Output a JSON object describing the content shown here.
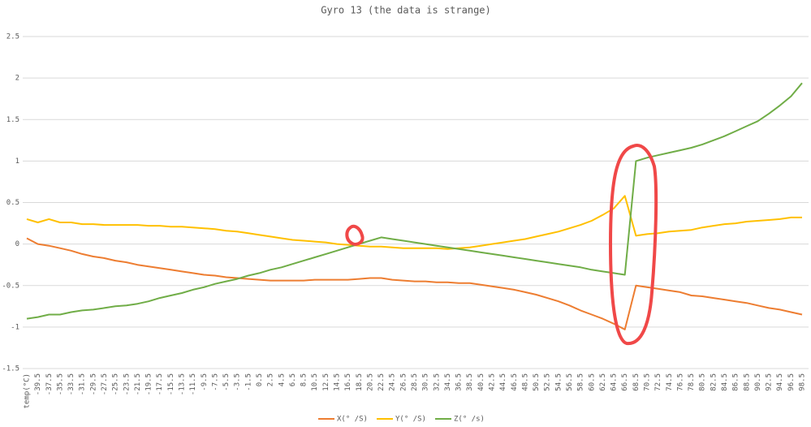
{
  "chart_data": {
    "type": "line",
    "title": "Gyro 13 (the data is strange)",
    "categories": [
      "temp(°C)",
      "-39.5",
      "-37.5",
      "-35.5",
      "-33.5",
      "-31.5",
      "-29.5",
      "-27.5",
      "-25.5",
      "-23.5",
      "-21.5",
      "-19.5",
      "-17.5",
      "-15.5",
      "-13.5",
      "-11.5",
      "-9.5",
      "-7.5",
      "-5.5",
      "-3.5",
      "-1.5",
      "0.5",
      "2.5",
      "4.5",
      "6.5",
      "8.5",
      "10.5",
      "12.5",
      "14.5",
      "16.5",
      "18.5",
      "20.5",
      "22.5",
      "24.5",
      "26.5",
      "28.5",
      "30.5",
      "32.5",
      "34.5",
      "36.5",
      "38.5",
      "40.5",
      "42.5",
      "44.5",
      "46.5",
      "48.5",
      "50.5",
      "52.5",
      "54.5",
      "56.5",
      "58.5",
      "60.5",
      "62.5",
      "64.5",
      "66.5",
      "68.5",
      "70.5",
      "72.5",
      "74.5",
      "76.5",
      "78.5",
      "80.5",
      "82.5",
      "84.5",
      "86.5",
      "88.5",
      "90.5",
      "92.5",
      "94.5",
      "96.5",
      "98.5"
    ],
    "series": [
      {
        "name": "X(° /S)",
        "color": "#ed7d31",
        "values": [
          0.07,
          0.0,
          -0.02,
          -0.05,
          -0.08,
          -0.12,
          -0.15,
          -0.17,
          -0.2,
          -0.22,
          -0.25,
          -0.27,
          -0.29,
          -0.31,
          -0.33,
          -0.35,
          -0.37,
          -0.38,
          -0.4,
          -0.41,
          -0.42,
          -0.43,
          -0.44,
          -0.44,
          -0.44,
          -0.44,
          -0.43,
          -0.43,
          -0.43,
          -0.43,
          -0.42,
          -0.41,
          -0.41,
          -0.43,
          -0.44,
          -0.45,
          -0.45,
          -0.46,
          -0.46,
          -0.47,
          -0.47,
          -0.49,
          -0.51,
          -0.53,
          -0.55,
          -0.58,
          -0.61,
          -0.65,
          -0.69,
          -0.74,
          -0.8,
          -0.85,
          -0.9,
          -0.96,
          -1.03,
          -0.5,
          -0.52,
          -0.54,
          -0.56,
          -0.58,
          -0.62,
          -0.63,
          -0.65,
          -0.67,
          -0.69,
          -0.71,
          -0.74,
          -0.77,
          -0.79,
          -0.82,
          -0.85
        ]
      },
      {
        "name": "Y(° /S)",
        "color": "#ffc000",
        "values": [
          0.3,
          0.26,
          0.3,
          0.26,
          0.26,
          0.24,
          0.24,
          0.23,
          0.23,
          0.23,
          0.23,
          0.22,
          0.22,
          0.21,
          0.21,
          0.2,
          0.19,
          0.18,
          0.16,
          0.15,
          0.13,
          0.11,
          0.09,
          0.07,
          0.05,
          0.04,
          0.03,
          0.02,
          0.0,
          -0.01,
          -0.02,
          -0.03,
          -0.03,
          -0.04,
          -0.05,
          -0.05,
          -0.05,
          -0.05,
          -0.06,
          -0.05,
          -0.04,
          -0.02,
          0.0,
          0.02,
          0.04,
          0.06,
          0.09,
          0.12,
          0.15,
          0.19,
          0.23,
          0.28,
          0.35,
          0.43,
          0.58,
          0.1,
          0.12,
          0.13,
          0.15,
          0.16,
          0.17,
          0.2,
          0.22,
          0.24,
          0.25,
          0.27,
          0.28,
          0.29,
          0.3,
          0.32,
          0.32
        ]
      },
      {
        "name": "Z(° /s)",
        "color": "#70ad47",
        "values": [
          -0.9,
          -0.88,
          -0.85,
          -0.85,
          -0.82,
          -0.8,
          -0.79,
          -0.77,
          -0.75,
          -0.74,
          -0.72,
          -0.69,
          -0.65,
          -0.62,
          -0.59,
          -0.55,
          -0.52,
          -0.48,
          -0.45,
          -0.42,
          -0.38,
          -0.35,
          -0.31,
          -0.28,
          -0.24,
          -0.2,
          -0.16,
          -0.12,
          -0.08,
          -0.04,
          0.0,
          0.04,
          0.08,
          0.06,
          0.04,
          0.02,
          0.0,
          -0.02,
          -0.04,
          -0.06,
          -0.08,
          -0.1,
          -0.12,
          -0.14,
          -0.16,
          -0.18,
          -0.2,
          -0.22,
          -0.24,
          -0.26,
          -0.28,
          -0.31,
          -0.33,
          -0.35,
          -0.37,
          1.0,
          1.04,
          1.07,
          1.1,
          1.13,
          1.16,
          1.2,
          1.25,
          1.3,
          1.36,
          1.42,
          1.48,
          1.57,
          1.67,
          1.78,
          1.94
        ]
      }
    ],
    "ylim": [
      -1.5,
      2.5
    ],
    "yticks": [
      -1.5,
      -1,
      -0.5,
      0,
      0.5,
      1,
      1.5,
      2,
      2.5
    ],
    "grid": true
  }
}
